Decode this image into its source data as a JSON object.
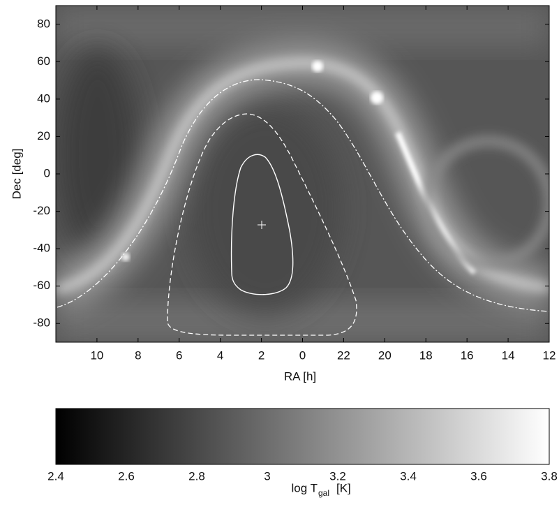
{
  "chart_data": {
    "type": "image",
    "xlabel": "RA [h]",
    "ylabel": "Dec [deg]",
    "xticklabels": [
      "10",
      "8",
      "6",
      "4",
      "2",
      "0",
      "22",
      "20",
      "18",
      "16",
      "14",
      "12"
    ],
    "ylim": [
      -90,
      90
    ],
    "yticks": [
      -80,
      -60,
      -40,
      -20,
      0,
      20,
      40,
      60,
      80
    ],
    "colorbar": {
      "label": "log T",
      "label_subscript": "gal",
      "label_unit": "[K]",
      "clim": [
        2.4,
        3.8
      ],
      "ticks": [
        2.4,
        2.6,
        2.8,
        3,
        3.2,
        3.4,
        3.6,
        3.8
      ],
      "colors": [
        "#000000",
        "#ffffff"
      ]
    }
  }
}
